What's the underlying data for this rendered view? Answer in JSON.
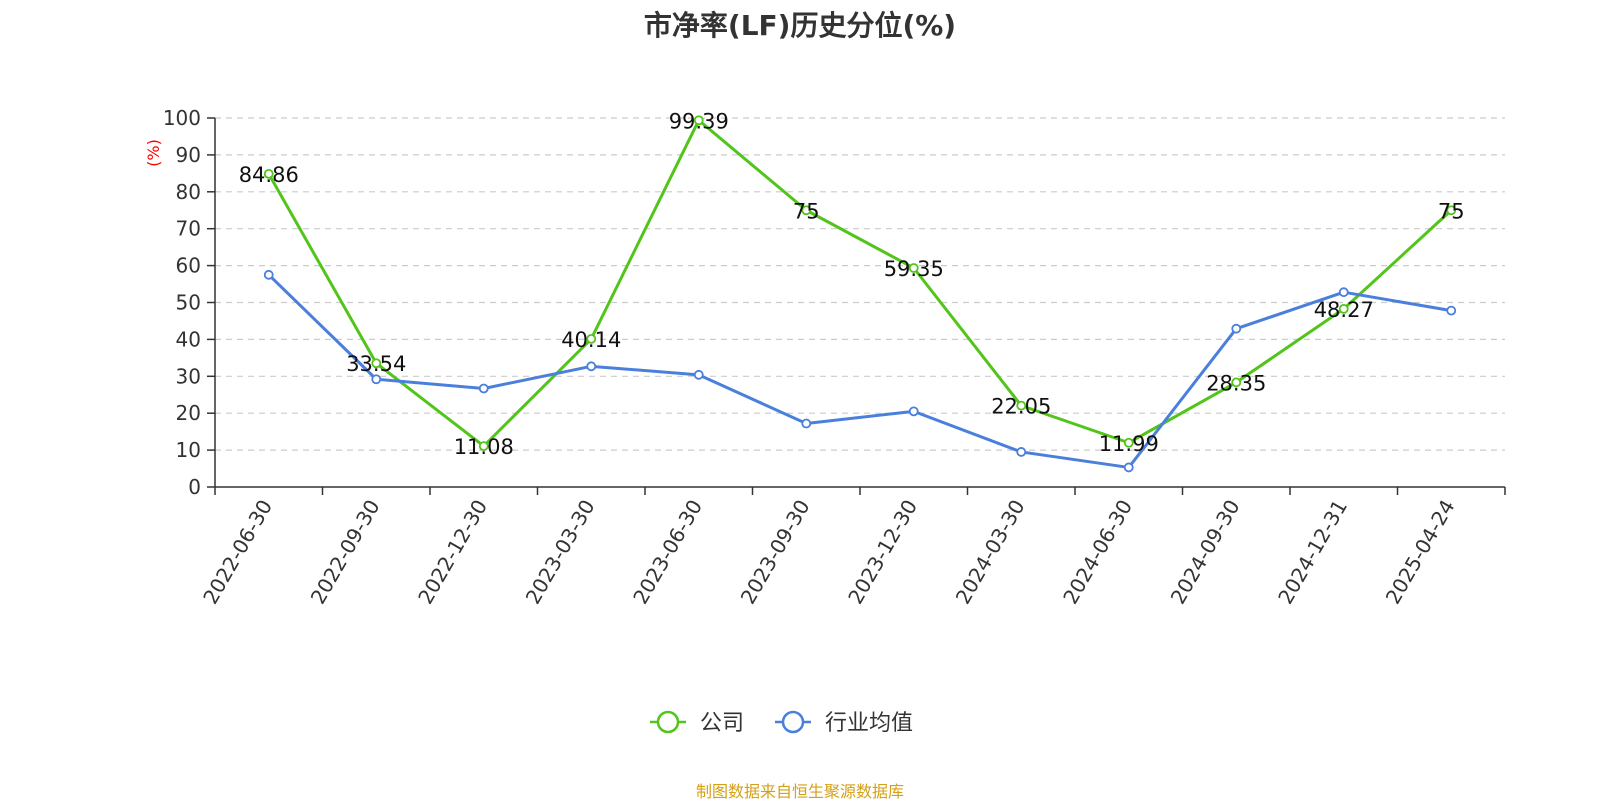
{
  "chart_data": {
    "type": "line",
    "title": "市净率(LF)历史分位(%)",
    "ylabel": "(%)",
    "ylim": [
      0,
      100
    ],
    "yticks": [
      0,
      10,
      20,
      30,
      40,
      50,
      60,
      70,
      80,
      90,
      100
    ],
    "categories": [
      "2022-06-30",
      "2022-09-30",
      "2022-12-30",
      "2023-03-30",
      "2023-06-30",
      "2023-09-30",
      "2023-12-30",
      "2024-03-30",
      "2024-06-30",
      "2024-09-30",
      "2024-12-31",
      "2025-04-24"
    ],
    "grid": true,
    "legend_position": "bottom",
    "series": [
      {
        "name": "公司",
        "color": "#52c41a",
        "values": [
          84.86,
          33.54,
          11.08,
          40.14,
          99.39,
          75,
          59.35,
          22.05,
          11.99,
          28.35,
          48.27,
          75
        ],
        "labels": [
          "84.86",
          "33.54",
          "11.08",
          "40.14",
          "99.39",
          "75",
          "59.35",
          "22.05",
          "11.99",
          "28.35",
          "48.27",
          "75"
        ]
      },
      {
        "name": "行业均值",
        "color": "#4a7fdc",
        "values": [
          57.5,
          29.2,
          26.7,
          32.7,
          30.4,
          17.2,
          20.5,
          9.5,
          5.3,
          42.9,
          52.8,
          47.8
        ]
      }
    ]
  },
  "colors": {
    "axis_unit": "#ff0000",
    "source": "#d4a017",
    "grid": "#cccccc",
    "axis": "#333333"
  },
  "source_note": "制图数据来自恒生聚源数据库"
}
